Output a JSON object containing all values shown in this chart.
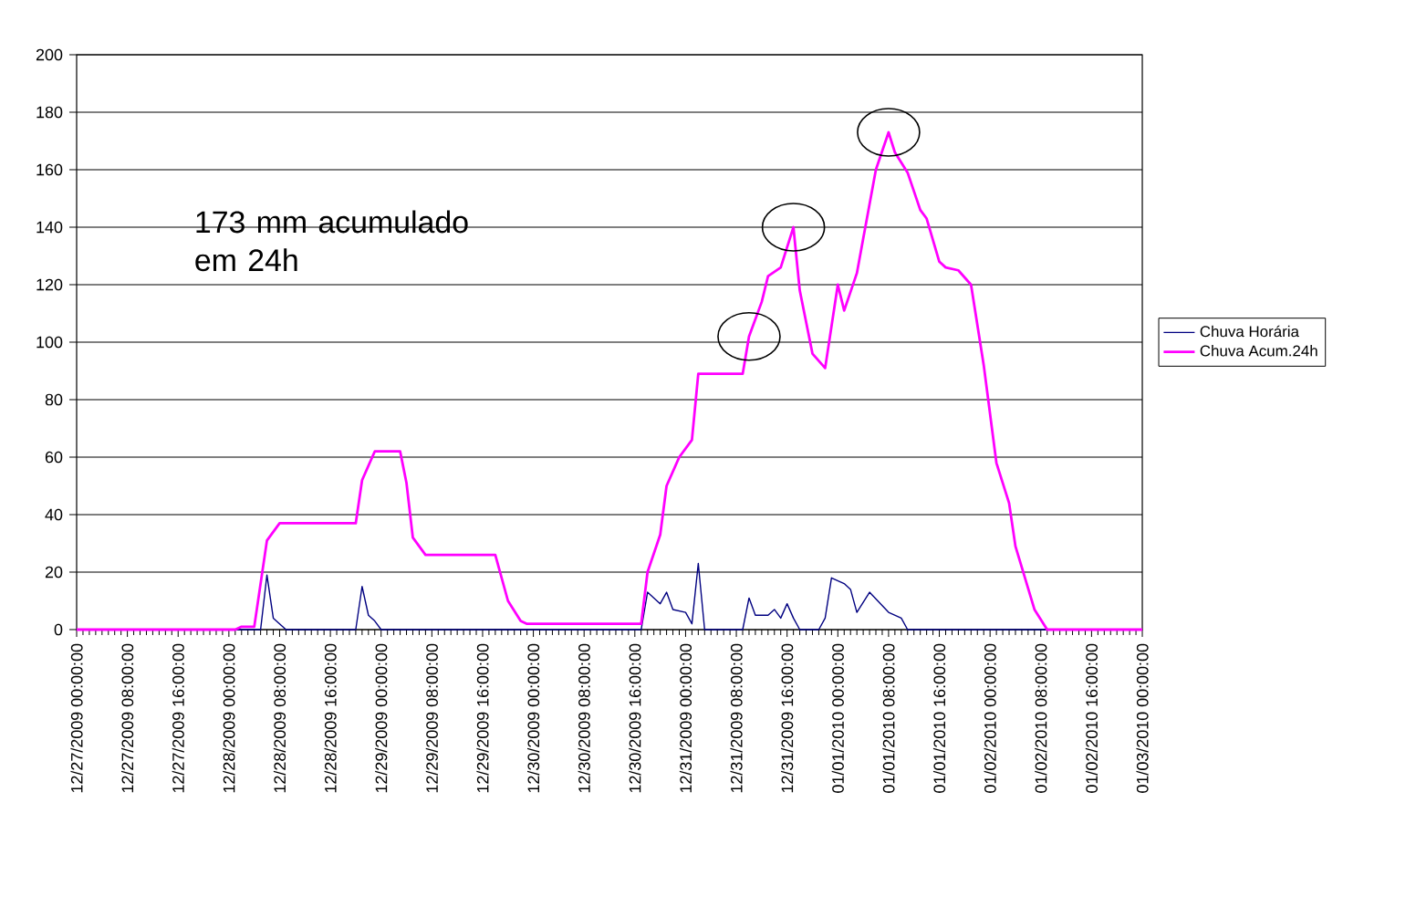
{
  "chart_data": {
    "type": "line",
    "xlim": [
      "2009-12-27T00:00",
      "2010-01-03T00:00"
    ],
    "ylim": [
      0,
      200
    ],
    "yticks": [
      0,
      20,
      40,
      60,
      80,
      100,
      120,
      140,
      160,
      180,
      200
    ],
    "xticks": [
      {
        "value": "2009-12-27T00:00",
        "label": "12/27/2009 00:00:00"
      },
      {
        "value": "2009-12-27T08:00",
        "label": "12/27/2009 08:00:00"
      },
      {
        "value": "2009-12-27T16:00",
        "label": "12/27/2009 16:00:00"
      },
      {
        "value": "2009-12-28T00:00",
        "label": "12/28/2009 00:00:00"
      },
      {
        "value": "2009-12-28T08:00",
        "label": "12/28/2009 08:00:00"
      },
      {
        "value": "2009-12-28T16:00",
        "label": "12/28/2009 16:00:00"
      },
      {
        "value": "2009-12-29T00:00",
        "label": "12/29/2009 00:00:00"
      },
      {
        "value": "2009-12-29T08:00",
        "label": "12/29/2009 08:00:00"
      },
      {
        "value": "2009-12-29T16:00",
        "label": "12/29/2009 16:00:00"
      },
      {
        "value": "2009-12-30T00:00",
        "label": "12/30/2009 00:00:00"
      },
      {
        "value": "2009-12-30T08:00",
        "label": "12/30/2009 08:00:00"
      },
      {
        "value": "2009-12-30T16:00",
        "label": "12/30/2009 16:00:00"
      },
      {
        "value": "2009-12-31T00:00",
        "label": "12/31/2009 00:00:00"
      },
      {
        "value": "2009-12-31T08:00",
        "label": "12/31/2009 08:00:00"
      },
      {
        "value": "2009-12-31T16:00",
        "label": "12/31/2009 16:00:00"
      },
      {
        "value": "2010-01-01T00:00",
        "label": "01/01/2010 00:00:00"
      },
      {
        "value": "2010-01-01T08:00",
        "label": "01/01/2010 08:00:00"
      },
      {
        "value": "2010-01-01T16:00",
        "label": "01/01/2010 16:00:00"
      },
      {
        "value": "2010-01-02T00:00",
        "label": "01/02/2010 00:00:00"
      },
      {
        "value": "2010-01-02T08:00",
        "label": "01/02/2010 08:00:00"
      },
      {
        "value": "2010-01-02T16:00",
        "label": "01/02/2010 16:00:00"
      },
      {
        "value": "2010-01-03T00:00",
        "label": "01/03/2010 00:00:00"
      }
    ],
    "grid": "y",
    "legend": "right",
    "annotations": [
      "173 mm acumulado em 24h"
    ],
    "series": [
      {
        "name": "Chuva Horária",
        "color": "#000080",
        "x": [
          "2009-12-27T00:00",
          "2009-12-28T05:00",
          "2009-12-28T06:00",
          "2009-12-28T07:00",
          "2009-12-28T08:00",
          "2009-12-28T09:00",
          "2009-12-28T20:00",
          "2009-12-28T21:00",
          "2009-12-28T22:00",
          "2009-12-28T23:00",
          "2009-12-29T00:00",
          "2009-12-30T17:00",
          "2009-12-30T18:00",
          "2009-12-30T20:00",
          "2009-12-30T21:00",
          "2009-12-30T22:00",
          "2009-12-31T00:00",
          "2009-12-31T01:00",
          "2009-12-31T02:00",
          "2009-12-31T03:00",
          "2009-12-31T09:00",
          "2009-12-31T10:00",
          "2009-12-31T11:00",
          "2009-12-31T13:00",
          "2009-12-31T14:00",
          "2009-12-31T15:00",
          "2009-12-31T16:00",
          "2009-12-31T17:00",
          "2009-12-31T18:00",
          "2009-12-31T21:00",
          "2009-12-31T22:00",
          "2009-12-31T23:00",
          "2010-01-01T01:00",
          "2010-01-01T02:00",
          "2010-01-01T03:00",
          "2010-01-01T05:00",
          "2010-01-01T08:00",
          "2010-01-01T10:00",
          "2010-01-01T11:00",
          "2010-01-03T00:00"
        ],
        "values": [
          0,
          0,
          19,
          4,
          2,
          0,
          0,
          15,
          5,
          3,
          0,
          0,
          13,
          9,
          13,
          7,
          6,
          2,
          23,
          0,
          0,
          11,
          5,
          5,
          7,
          4,
          9,
          4,
          0,
          0,
          4,
          18,
          16,
          14,
          6,
          13,
          6,
          4,
          0,
          0
        ]
      },
      {
        "name": "Chuva Acum.24h",
        "color": "#ff00ff",
        "x": [
          "2009-12-27T00:00",
          "2009-12-28T01:00",
          "2009-12-28T02:00",
          "2009-12-28T04:00",
          "2009-12-28T06:00",
          "2009-12-28T08:00",
          "2009-12-28T20:00",
          "2009-12-28T21:00",
          "2009-12-28T22:00",
          "2009-12-28T23:00",
          "2009-12-29T03:00",
          "2009-12-29T04:00",
          "2009-12-29T05:00",
          "2009-12-29T07:00",
          "2009-12-29T18:00",
          "2009-12-29T20:00",
          "2009-12-29T22:00",
          "2009-12-29T23:00",
          "2009-12-30T17:00",
          "2009-12-30T18:00",
          "2009-12-30T20:00",
          "2009-12-30T21:00",
          "2009-12-30T23:00",
          "2009-12-31T01:00",
          "2009-12-31T02:00",
          "2009-12-31T09:00",
          "2009-12-31T10:00",
          "2009-12-31T12:00",
          "2009-12-31T13:00",
          "2009-12-31T15:00",
          "2009-12-31T17:00",
          "2009-12-31T18:00",
          "2009-12-31T20:00",
          "2009-12-31T22:00",
          "2010-01-01T00:00",
          "2010-01-01T01:00",
          "2010-01-01T03:00",
          "2010-01-01T04:00",
          "2010-01-01T06:00",
          "2010-01-01T08:00",
          "2010-01-01T09:00",
          "2010-01-01T11:00",
          "2010-01-01T13:00",
          "2010-01-01T14:00",
          "2010-01-01T16:00",
          "2010-01-01T17:00",
          "2010-01-01T19:00",
          "2010-01-01T21:00",
          "2010-01-01T23:00",
          "2010-01-02T01:00",
          "2010-01-02T03:00",
          "2010-01-02T04:00",
          "2010-01-02T07:00",
          "2010-01-02T09:00",
          "2010-01-03T00:00"
        ],
        "values": [
          0,
          0,
          1,
          1,
          31,
          37,
          37,
          52,
          57,
          62,
          62,
          51,
          32,
          26,
          26,
          10,
          3,
          2,
          2,
          20,
          33,
          50,
          60,
          66,
          89,
          89,
          102,
          114,
          123,
          126,
          140,
          118,
          96,
          91,
          120,
          111,
          124,
          136,
          160,
          173,
          166,
          159,
          146,
          143,
          128,
          126,
          125,
          120,
          92,
          58,
          44,
          29,
          7,
          0,
          0
        ]
      }
    ]
  }
}
